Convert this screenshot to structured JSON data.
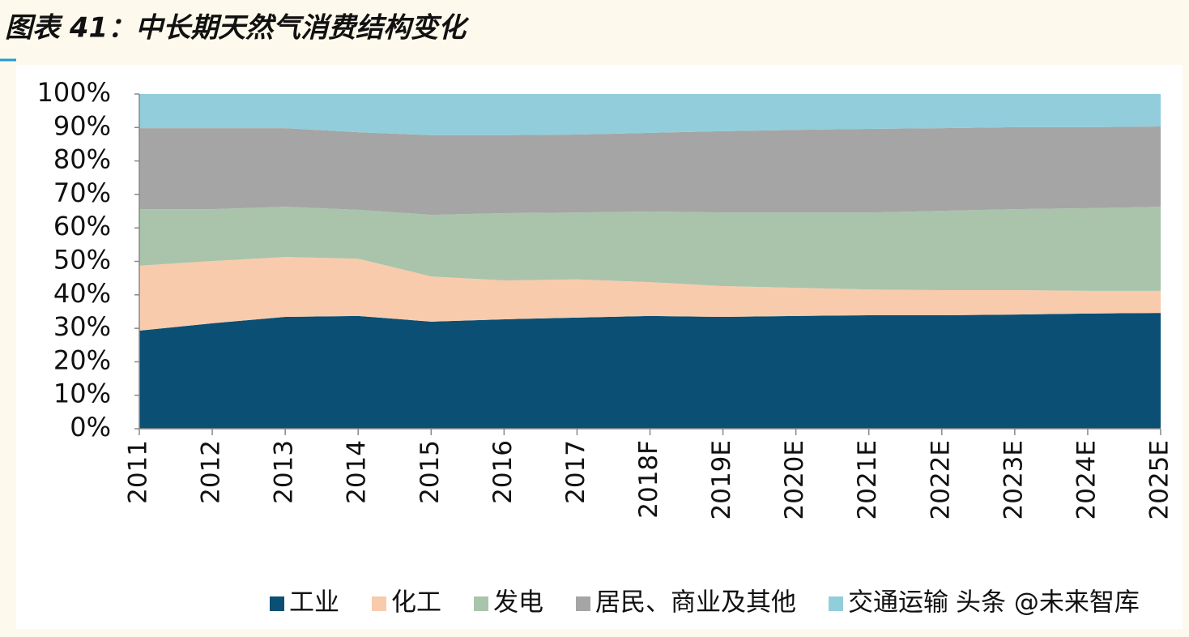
{
  "chart_data": {
    "type": "stacked-area",
    "title": "图表 41：中长期天然气消费结构变化",
    "categories": [
      "2011",
      "2012",
      "2013",
      "2014",
      "2015",
      "2016",
      "2017",
      "2018F",
      "2019E",
      "2020E",
      "2021E",
      "2022E",
      "2023E",
      "2024E",
      "2025E"
    ],
    "series": [
      {
        "name": "工业",
        "color": "#0b4f74",
        "values": [
          29.3,
          31.5,
          33.4,
          33.7,
          32.0,
          32.7,
          33.2,
          33.7,
          33.4,
          33.7,
          33.9,
          33.9,
          34.1,
          34.4,
          34.6
        ]
      },
      {
        "name": "化工",
        "color": "#f8cbad",
        "values": [
          19.4,
          18.6,
          17.9,
          17.1,
          13.5,
          11.6,
          11.4,
          10.1,
          9.2,
          8.4,
          7.7,
          7.5,
          7.3,
          6.8,
          6.6
        ]
      },
      {
        "name": "发电",
        "color": "#a9c4ab",
        "values": [
          16.9,
          15.5,
          15.0,
          14.6,
          18.4,
          20.1,
          20.0,
          21.1,
          22.0,
          22.5,
          23.0,
          23.7,
          24.2,
          24.7,
          25.1
        ]
      },
      {
        "name": "居民、商业及其他",
        "color": "#a5a5a5",
        "values": [
          24.2,
          24.2,
          23.5,
          23.2,
          23.8,
          23.3,
          23.3,
          23.5,
          24.3,
          24.7,
          25.0,
          24.7,
          24.5,
          24.2,
          24.0
        ]
      },
      {
        "name": "交通运输",
        "color": "#92cddc",
        "values": [
          10.2,
          10.2,
          10.2,
          11.4,
          12.3,
          12.3,
          12.1,
          11.6,
          11.1,
          10.7,
          10.4,
          10.2,
          9.9,
          9.9,
          9.7
        ]
      }
    ],
    "ylim": [
      0,
      100
    ],
    "yticks": [
      {
        "value": 0,
        "label": "0%"
      },
      {
        "value": 10,
        "label": "10%"
      },
      {
        "value": 20,
        "label": "20%"
      },
      {
        "value": 30,
        "label": "30%"
      },
      {
        "value": 40,
        "label": "40%"
      },
      {
        "value": 50,
        "label": "50%"
      },
      {
        "value": 60,
        "label": "60%"
      },
      {
        "value": 70,
        "label": "70%"
      },
      {
        "value": 80,
        "label": "80%"
      },
      {
        "value": 90,
        "label": "90%"
      },
      {
        "value": 100,
        "label": "100%"
      }
    ],
    "legend": "bottom",
    "watermark": "头条 @未来智库"
  }
}
